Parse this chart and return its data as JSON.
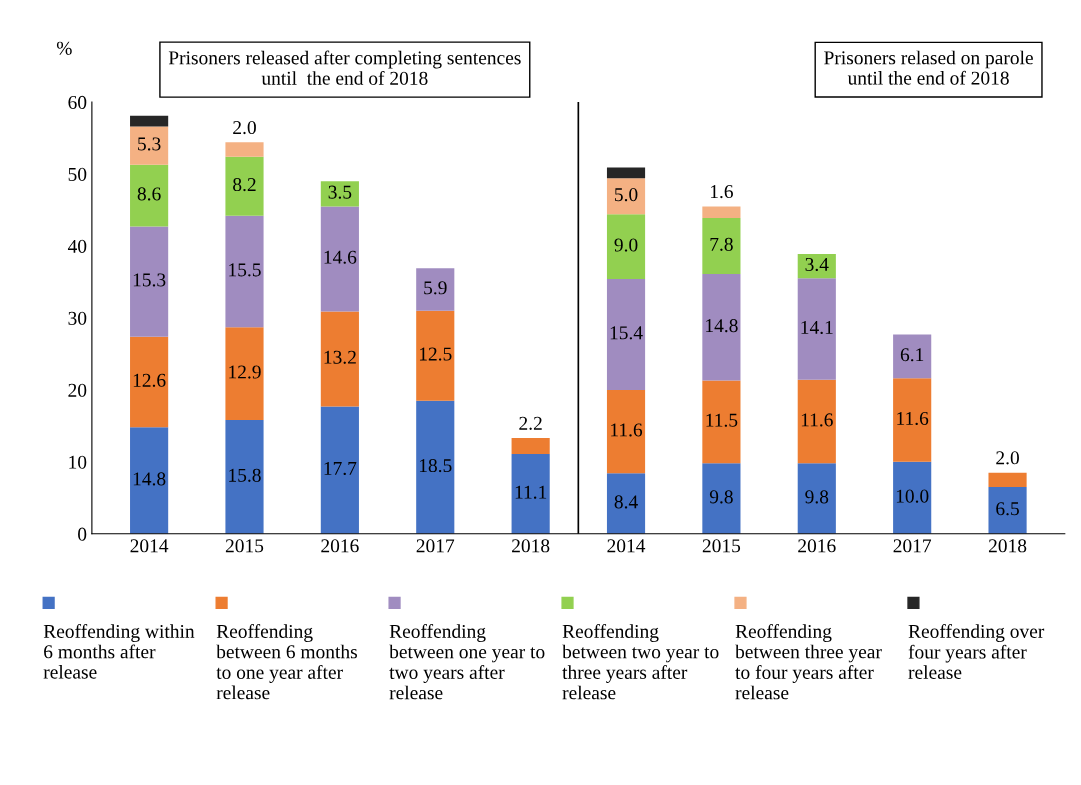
{
  "chart_data": {
    "type": "bar",
    "stacked": true,
    "ylabel": "%",
    "categories": [
      "2014",
      "2015",
      "2016",
      "2017",
      "2018",
      "2014",
      "2015",
      "2016",
      "2017",
      "2018"
    ],
    "series": [
      {
        "name": "Reoffending within 6 months after release",
        "color": "#4472c4",
        "values": [
          14.8,
          15.8,
          17.7,
          18.5,
          11.1,
          8.4,
          9.8,
          9.8,
          10.0,
          6.5
        ],
        "value_labels": [
          "14.8",
          "15.8",
          "17.7",
          "18.5",
          "11.1",
          "8.4",
          "9.8",
          "9.8",
          "10.0",
          "6.5"
        ]
      },
      {
        "name": "Reoffending between 6 months to one year after release",
        "color": "#ed7d31",
        "values": [
          12.6,
          12.9,
          13.2,
          12.5,
          2.2,
          11.6,
          11.5,
          11.6,
          11.6,
          2.0
        ],
        "value_labels": [
          "12.6",
          "12.9",
          "13.2",
          "12.5",
          "2.2",
          "11.6",
          "11.5",
          "11.6",
          "11.6",
          "2.0"
        ]
      },
      {
        "name": "Reoffending between one year to two years after release",
        "color": "#a08cc0",
        "values": [
          15.3,
          15.5,
          14.6,
          5.9,
          null,
          15.4,
          14.8,
          14.1,
          6.1,
          null
        ],
        "value_labels": [
          "15.3",
          "15.5",
          "14.6",
          "5.9",
          null,
          "15.4",
          "14.8",
          "14.1",
          "6.1",
          null
        ]
      },
      {
        "name": "Reoffending between two year to three years after release",
        "color": "#92d050",
        "values": [
          8.6,
          8.2,
          3.5,
          null,
          null,
          9.0,
          7.8,
          3.4,
          null,
          null
        ],
        "value_labels": [
          "8.6",
          "8.2",
          "3.5",
          null,
          null,
          "9.0",
          "7.8",
          "3.4",
          null,
          null
        ]
      },
      {
        "name": "Reoffending between three year to four years after release",
        "color": "#f4b183",
        "values": [
          5.3,
          2.0,
          null,
          null,
          null,
          5.0,
          1.6,
          null,
          null,
          null
        ],
        "value_labels": [
          "5.3",
          "2.0",
          null,
          null,
          null,
          "5.0",
          "1.6",
          null,
          null,
          null
        ]
      },
      {
        "name": "Reoffending over four years after release",
        "color": "#262626",
        "values": [
          1.5,
          null,
          null,
          null,
          null,
          1.5,
          null,
          null,
          null,
          null
        ]
      }
    ],
    "ylim": [
      0,
      60
    ],
    "yticks": [
      0,
      10,
      20,
      30,
      40,
      50,
      60
    ],
    "annotations": [
      "Prisoners released after completing sentences\nuntil  the end of 2018",
      "Prisoners relased on parole\nuntil the end of 2018"
    ],
    "legend": "bottom",
    "grid": false
  }
}
